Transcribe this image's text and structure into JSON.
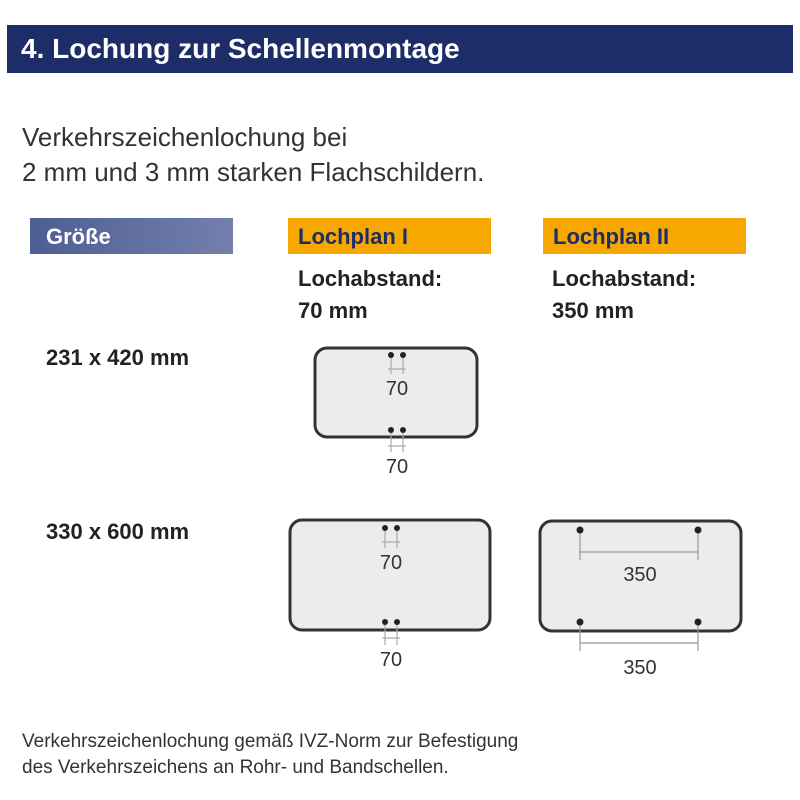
{
  "header": {
    "title": "4. Lochung zur Schellenmontage"
  },
  "intro": {
    "line1": "Verkehrszeichenlochung bei",
    "line2": "2 mm und 3 mm starken Flachschildern."
  },
  "columns": {
    "size": "Größe",
    "plan1": "Lochplan I",
    "plan2": "Lochplan II"
  },
  "plan1": {
    "label": "Lochabstand:",
    "value": "70 mm"
  },
  "plan2": {
    "label": "Lochabstand:",
    "value": "350 mm"
  },
  "rows": [
    {
      "size": "231 x 420 mm",
      "plan1_top": "70",
      "plan1_bottom": "70"
    },
    {
      "size": "330 x 600 mm",
      "plan1_top": "70",
      "plan1_bottom": "70",
      "plan2_top": "350",
      "plan2_bottom": "350"
    }
  ],
  "footer": {
    "line1": "Verkehrszeichenlochung gemäß IVZ-Norm zur Befestigung",
    "line2": "des Verkehrszeichens an Rohr- und Bandschellen."
  },
  "colors": {
    "header": "#1d2d68",
    "accent": "#f7a800",
    "sign_fill": "#ebeced"
  }
}
